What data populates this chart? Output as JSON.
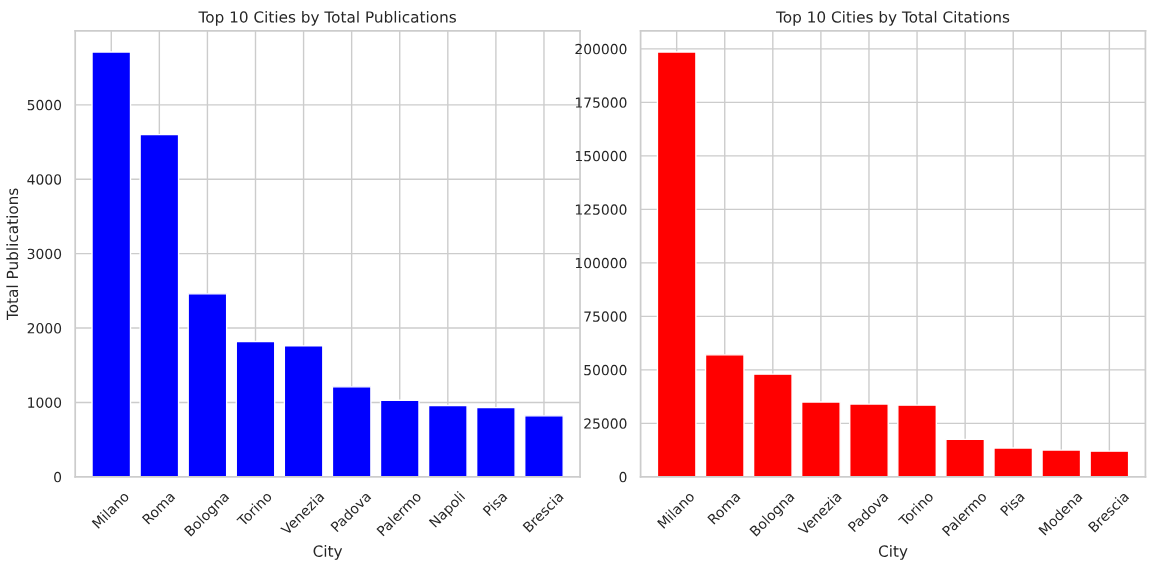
{
  "chart_data": [
    {
      "type": "bar",
      "title": "Top 10 Cities by Total Publications",
      "xlabel": "City",
      "ylabel": "Total Publications",
      "categories": [
        "Milano",
        "Roma",
        "Bologna",
        "Torino",
        "Venezia",
        "Padova",
        "Palermo",
        "Napoli",
        "Pisa",
        "Brescia"
      ],
      "values": [
        5710,
        4600,
        2460,
        1820,
        1760,
        1210,
        1030,
        960,
        930,
        820
      ],
      "color": "#0000ff",
      "ylim": [
        0,
        5995
      ],
      "yticks": [
        0,
        1000,
        2000,
        3000,
        4000,
        5000
      ],
      "grid": true
    },
    {
      "type": "bar",
      "title": "Top 10 Cities by Total Citations",
      "xlabel": "City",
      "categories": [
        "Milano",
        "Roma",
        "Bologna",
        "Venezia",
        "Padova",
        "Torino",
        "Palermo",
        "Pisa",
        "Modena",
        "Brescia"
      ],
      "values": [
        198500,
        57000,
        48000,
        35000,
        34000,
        33500,
        17500,
        13500,
        12500,
        12000
      ],
      "color": "#ff0000",
      "ylim": [
        0,
        208400
      ],
      "yticks": [
        0,
        25000,
        50000,
        75000,
        100000,
        125000,
        150000,
        175000,
        200000
      ],
      "grid": true
    }
  ]
}
